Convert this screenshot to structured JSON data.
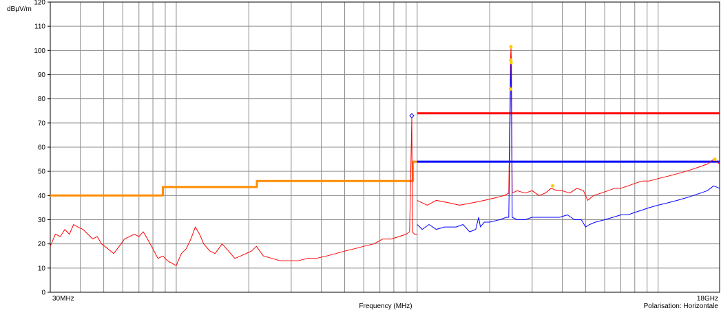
{
  "chart_data": {
    "type": "line",
    "title": "",
    "ylabel": "dBµV/m",
    "xlabel": "Frequency (MHz)",
    "polarisation_label": "Polarisation: Horizontale",
    "x_scale": "log",
    "xlim": [
      30,
      18000
    ],
    "ylim": [
      0,
      120
    ],
    "y_ticks": [
      0,
      10,
      20,
      30,
      40,
      50,
      60,
      70,
      80,
      90,
      100,
      110,
      120
    ],
    "x_tick_labels": [
      {
        "x": 30,
        "label": "30MHz"
      },
      {
        "x": 18000,
        "label": "18GHz"
      }
    ],
    "grid": true,
    "series": [
      {
        "color": "#ff8c00",
        "kind": "limit",
        "points": [
          [
            30,
            40
          ],
          [
            88,
            40
          ],
          [
            88,
            43.5
          ],
          [
            216,
            43.5
          ],
          [
            216,
            46
          ],
          [
            960,
            46
          ],
          [
            960,
            54
          ],
          [
            1000,
            54
          ]
        ]
      },
      {
        "color": "#ff0000",
        "kind": "limit",
        "points": [
          [
            1000,
            74
          ],
          [
            18000,
            74
          ]
        ]
      },
      {
        "color": "#0000ff",
        "kind": "limit",
        "points": [
          [
            1000,
            54
          ],
          [
            18000,
            54
          ]
        ]
      },
      {
        "color": "#ff0000",
        "kind": "measurement",
        "points": [
          [
            30,
            19
          ],
          [
            31.5,
            24
          ],
          [
            33,
            23
          ],
          [
            34.5,
            26
          ],
          [
            36,
            24
          ],
          [
            37.5,
            28
          ],
          [
            39,
            27
          ],
          [
            41,
            26
          ],
          [
            43,
            24
          ],
          [
            45,
            22
          ],
          [
            47,
            23
          ],
          [
            49,
            20
          ],
          [
            52,
            18
          ],
          [
            55,
            16
          ],
          [
            58,
            19
          ],
          [
            61,
            22
          ],
          [
            64,
            23
          ],
          [
            67,
            24
          ],
          [
            70,
            23
          ],
          [
            73,
            25
          ],
          [
            76,
            22
          ],
          [
            80,
            18
          ],
          [
            84,
            14
          ],
          [
            88,
            15
          ],
          [
            92,
            13
          ],
          [
            96,
            12
          ],
          [
            100,
            11
          ],
          [
            105,
            16
          ],
          [
            110,
            18
          ],
          [
            115,
            22
          ],
          [
            120,
            27
          ],
          [
            125,
            24
          ],
          [
            130,
            20
          ],
          [
            138,
            17
          ],
          [
            145,
            16
          ],
          [
            155,
            20
          ],
          [
            165,
            17
          ],
          [
            175,
            14
          ],
          [
            185,
            15
          ],
          [
            195,
            16
          ],
          [
            205,
            17
          ],
          [
            215,
            19
          ],
          [
            230,
            15
          ],
          [
            250,
            14
          ],
          [
            270,
            13
          ],
          [
            290,
            13
          ],
          [
            320,
            13
          ],
          [
            350,
            14
          ],
          [
            380,
            14
          ],
          [
            420,
            15
          ],
          [
            460,
            16
          ],
          [
            500,
            17
          ],
          [
            550,
            18
          ],
          [
            600,
            19
          ],
          [
            660,
            20
          ],
          [
            720,
            22
          ],
          [
            780,
            22
          ],
          [
            840,
            23
          ],
          [
            900,
            24
          ],
          [
            930,
            25
          ],
          [
            950,
            72.5
          ],
          [
            955,
            25
          ],
          [
            975,
            24
          ],
          [
            1000,
            24
          ]
        ]
      },
      {
        "color": "#ff0000",
        "kind": "measurement",
        "points": [
          [
            1000,
            38
          ],
          [
            1100,
            36
          ],
          [
            1200,
            38
          ],
          [
            1350,
            37
          ],
          [
            1500,
            36
          ],
          [
            1700,
            37
          ],
          [
            1900,
            38
          ],
          [
            2100,
            39
          ],
          [
            2300,
            40
          ],
          [
            2400,
            41
          ],
          [
            2440,
            96
          ],
          [
            2450,
            101
          ],
          [
            2460,
            96
          ],
          [
            2480,
            41
          ],
          [
            2600,
            42
          ],
          [
            2800,
            41
          ],
          [
            3000,
            42
          ],
          [
            3200,
            40
          ],
          [
            3400,
            41
          ],
          [
            3600,
            43
          ],
          [
            3800,
            42
          ],
          [
            4000,
            42
          ],
          [
            4300,
            41
          ],
          [
            4600,
            43
          ],
          [
            4900,
            42
          ],
          [
            5100,
            38
          ],
          [
            5400,
            40
          ],
          [
            5800,
            41
          ],
          [
            6200,
            42
          ],
          [
            6600,
            43
          ],
          [
            7000,
            43
          ],
          [
            7500,
            44
          ],
          [
            8000,
            45
          ],
          [
            8600,
            46
          ],
          [
            9200,
            46
          ],
          [
            10000,
            47
          ],
          [
            11000,
            48
          ],
          [
            12000,
            49
          ],
          [
            13000,
            50
          ],
          [
            14000,
            51
          ],
          [
            15000,
            52
          ],
          [
            16000,
            53
          ],
          [
            17000,
            55
          ],
          [
            18000,
            53
          ]
        ]
      },
      {
        "color": "#0000ff",
        "kind": "measurement",
        "points": [
          [
            1000,
            28
          ],
          [
            1050,
            26
          ],
          [
            1120,
            28
          ],
          [
            1200,
            26
          ],
          [
            1300,
            27
          ],
          [
            1450,
            27
          ],
          [
            1550,
            28
          ],
          [
            1650,
            25
          ],
          [
            1750,
            26
          ],
          [
            1800,
            31
          ],
          [
            1830,
            27
          ],
          [
            1900,
            29
          ],
          [
            2000,
            29
          ],
          [
            2200,
            30
          ],
          [
            2350,
            31
          ],
          [
            2400,
            31
          ],
          [
            2440,
            85
          ],
          [
            2450,
            96
          ],
          [
            2460,
            85
          ],
          [
            2480,
            31
          ],
          [
            2600,
            30
          ],
          [
            2800,
            30
          ],
          [
            3000,
            31
          ],
          [
            3300,
            31
          ],
          [
            3600,
            31
          ],
          [
            3900,
            31
          ],
          [
            4200,
            32
          ],
          [
            4500,
            30
          ],
          [
            4800,
            30
          ],
          [
            5000,
            27
          ],
          [
            5200,
            28
          ],
          [
            5500,
            29
          ],
          [
            6000,
            30
          ],
          [
            6500,
            31
          ],
          [
            7000,
            32
          ],
          [
            7500,
            32
          ],
          [
            8000,
            33
          ],
          [
            8600,
            34
          ],
          [
            9200,
            35
          ],
          [
            10000,
            36
          ],
          [
            11000,
            37
          ],
          [
            12000,
            38
          ],
          [
            13000,
            39
          ],
          [
            14000,
            40
          ],
          [
            15000,
            41
          ],
          [
            16000,
            42
          ],
          [
            17000,
            44
          ],
          [
            18000,
            43
          ]
        ]
      }
    ],
    "markers": [
      {
        "x": 950,
        "y": 73,
        "color": "#0000ff",
        "shape": "diamond"
      },
      {
        "x": 2445,
        "y": 96,
        "color": "#ffcc00",
        "shape": "star"
      },
      {
        "x": 2450,
        "y": 101.5,
        "color": "#ffcc00",
        "shape": "star"
      },
      {
        "x": 2455,
        "y": 95,
        "color": "#ffcc00",
        "shape": "star"
      },
      {
        "x": 2440,
        "y": 84,
        "color": "#ffcc00",
        "shape": "star"
      },
      {
        "x": 3650,
        "y": 44,
        "color": "#ffcc00",
        "shape": "star"
      },
      {
        "x": 17200,
        "y": 55,
        "color": "#ffcc00",
        "shape": "star"
      }
    ]
  }
}
